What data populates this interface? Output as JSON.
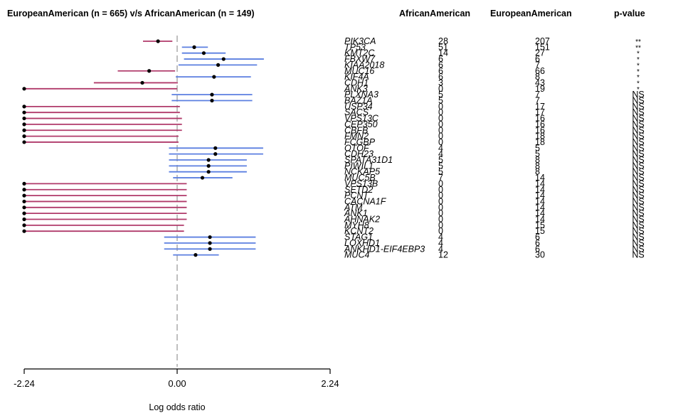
{
  "header": {
    "title": "EuropeanAmerican (n = 665) v/s AfricanAmerican (n = 149)",
    "col_african": "AfricanAmerican",
    "col_european": "EuropeanAmerican",
    "col_pvalue": "p-value"
  },
  "chart_data": {
    "type": "forest",
    "title": "EuropeanAmerican (n = 665) v/s AfricanAmerican (n = 149)",
    "xlabel": "Log odds ratio",
    "xlim": [
      -2.24,
      2.24
    ],
    "xticks": [
      -2.24,
      0.0,
      2.24
    ],
    "xtick_labels": [
      "-2.24",
      "0.00",
      "2.24"
    ],
    "reference_line": 0,
    "colors": {
      "positive": "#5b7fe0",
      "negative": "#b03a6a",
      "reference": "#aaaaaa"
    },
    "rows": [
      {
        "gene": "PIK3CA",
        "african": "28",
        "european": "207",
        "pvalue": "**",
        "or": -0.28,
        "lo": -0.5,
        "hi": -0.07
      },
      {
        "gene": "TP53",
        "african": "51",
        "european": "151",
        "pvalue": "**",
        "or": 0.25,
        "lo": 0.07,
        "hi": 0.45
      },
      {
        "gene": "KMT2C",
        "african": "14",
        "european": "27",
        "pvalue": "*",
        "or": 0.39,
        "lo": 0.07,
        "hi": 0.71
      },
      {
        "gene": "FBXW7",
        "african": "6",
        "european": "6",
        "pvalue": "*",
        "or": 0.68,
        "lo": 0.1,
        "hi": 1.27
      },
      {
        "gene": "KIAA2018",
        "african": "6",
        "european": "7",
        "pvalue": "*",
        "or": 0.6,
        "lo": 0.02,
        "hi": 1.17
      },
      {
        "gene": "MUC16",
        "african": "6",
        "european": "66",
        "pvalue": "*",
        "or": -0.41,
        "lo": -0.87,
        "hi": -0.03
      },
      {
        "gene": "KIF4A",
        "african": "6",
        "european": "8",
        "pvalue": "*",
        "or": 0.54,
        "lo": -0.02,
        "hi": 1.08
      },
      {
        "gene": "CDH1",
        "african": "3",
        "european": "43",
        "pvalue": "*",
        "or": -0.51,
        "lo": -1.22,
        "hi": 0.01
      },
      {
        "gene": "ANK3",
        "african": "0",
        "european": "19",
        "pvalue": "*",
        "or": -2.24,
        "lo": -2.24,
        "hi": 0.0
      },
      {
        "gene": "PLXNA3",
        "african": "5",
        "european": "7",
        "pvalue": "NS",
        "or": 0.51,
        "lo": -0.08,
        "hi": 1.1
      },
      {
        "gene": "BAZ1A",
        "african": "5",
        "european": "7",
        "pvalue": "NS",
        "or": 0.51,
        "lo": -0.08,
        "hi": 1.1
      },
      {
        "gene": "USP34",
        "african": "0",
        "european": "17",
        "pvalue": "NS",
        "or": -2.24,
        "lo": -2.24,
        "hi": 0.04
      },
      {
        "gene": "SACS",
        "african": "0",
        "european": "17",
        "pvalue": "NS",
        "or": -2.24,
        "lo": -2.24,
        "hi": 0.04
      },
      {
        "gene": "VPS13C",
        "african": "0",
        "european": "16",
        "pvalue": "NS",
        "or": -2.24,
        "lo": -2.24,
        "hi": 0.07
      },
      {
        "gene": "CEP350",
        "african": "0",
        "european": "16",
        "pvalue": "NS",
        "or": -2.24,
        "lo": -2.24,
        "hi": 0.07
      },
      {
        "gene": "CBFB",
        "african": "0",
        "european": "16",
        "pvalue": "NS",
        "or": -2.24,
        "lo": -2.24,
        "hi": 0.07
      },
      {
        "gene": "FMN2",
        "african": "0",
        "european": "18",
        "pvalue": "NS",
        "or": -2.24,
        "lo": -2.24,
        "hi": 0.02
      },
      {
        "gene": "FCGBP",
        "african": "0",
        "european": "18",
        "pvalue": "NS",
        "or": -2.24,
        "lo": -2.24,
        "hi": 0.02
      },
      {
        "gene": "OTOF",
        "african": "4",
        "european": "5",
        "pvalue": "NS",
        "or": 0.56,
        "lo": -0.12,
        "hi": 1.26
      },
      {
        "gene": "CDH23",
        "african": "4",
        "european": "5",
        "pvalue": "NS",
        "or": 0.56,
        "lo": -0.12,
        "hi": 1.26
      },
      {
        "gene": "SPATA31D1",
        "african": "5",
        "european": "8",
        "pvalue": "NS",
        "or": 0.46,
        "lo": -0.12,
        "hi": 1.02
      },
      {
        "gene": "PIWIL1",
        "african": "5",
        "european": "8",
        "pvalue": "NS",
        "or": 0.46,
        "lo": -0.12,
        "hi": 1.02
      },
      {
        "gene": "NCKAP5",
        "african": "5",
        "european": "8",
        "pvalue": "NS",
        "or": 0.46,
        "lo": -0.12,
        "hi": 1.02
      },
      {
        "gene": "MUC5B",
        "african": "7",
        "european": "14",
        "pvalue": "NS",
        "or": 0.37,
        "lo": -0.06,
        "hi": 0.81
      },
      {
        "gene": "VPS13B",
        "african": "0",
        "european": "14",
        "pvalue": "NS",
        "or": -2.24,
        "lo": -2.24,
        "hi": 0.14
      },
      {
        "gene": "SETD2",
        "african": "0",
        "european": "14",
        "pvalue": "NS",
        "or": -2.24,
        "lo": -2.24,
        "hi": 0.14
      },
      {
        "gene": "PCNT",
        "african": "0",
        "european": "14",
        "pvalue": "NS",
        "or": -2.24,
        "lo": -2.24,
        "hi": 0.14
      },
      {
        "gene": "CACNA1F",
        "african": "0",
        "european": "14",
        "pvalue": "NS",
        "or": -2.24,
        "lo": -2.24,
        "hi": 0.14
      },
      {
        "gene": "ATM",
        "african": "0",
        "european": "14",
        "pvalue": "NS",
        "or": -2.24,
        "lo": -2.24,
        "hi": 0.14
      },
      {
        "gene": "ANK1",
        "african": "0",
        "european": "14",
        "pvalue": "NS",
        "or": -2.24,
        "lo": -2.24,
        "hi": 0.14
      },
      {
        "gene": "AHNAK2",
        "african": "0",
        "european": "14",
        "pvalue": "NS",
        "or": -2.24,
        "lo": -2.24,
        "hi": 0.14
      },
      {
        "gene": "MYH8",
        "african": "0",
        "european": "15",
        "pvalue": "NS",
        "or": -2.24,
        "lo": -2.24,
        "hi": 0.1
      },
      {
        "gene": "KCNT2",
        "african": "0",
        "european": "15",
        "pvalue": "NS",
        "or": -2.24,
        "lo": -2.24,
        "hi": 0.1
      },
      {
        "gene": "STAG1",
        "african": "4",
        "european": "6",
        "pvalue": "NS",
        "or": 0.48,
        "lo": -0.19,
        "hi": 1.15
      },
      {
        "gene": "LOXHD1",
        "african": "4",
        "european": "6",
        "pvalue": "NS",
        "or": 0.48,
        "lo": -0.19,
        "hi": 1.15
      },
      {
        "gene": "ANKHD1-EIF4EBP3",
        "african": "4",
        "european": "6",
        "pvalue": "NS",
        "or": 0.48,
        "lo": -0.19,
        "hi": 1.15
      },
      {
        "gene": "MUC4",
        "african": "12",
        "european": "30",
        "pvalue": "NS",
        "or": 0.27,
        "lo": -0.06,
        "hi": 0.61
      }
    ]
  }
}
